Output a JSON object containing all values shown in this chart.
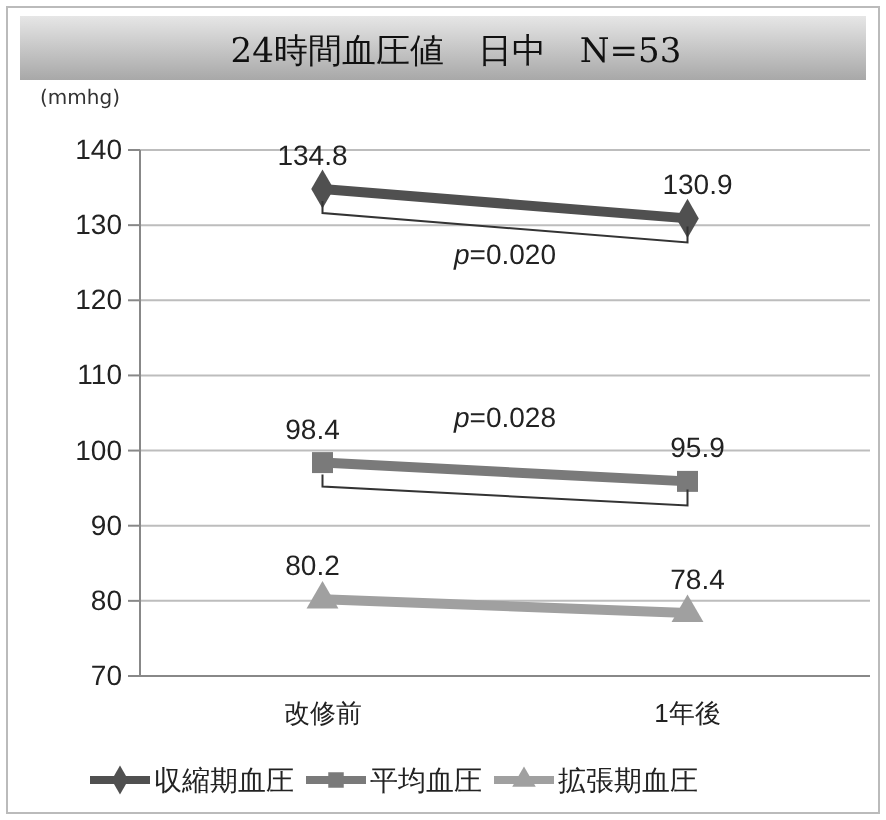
{
  "chart_data": {
    "type": "line",
    "title": "24時間血圧値　日中　N=53",
    "ylabel": "(mmhg)",
    "categories": [
      "改修前",
      "1年後"
    ],
    "series": [
      {
        "name": "収縮期血圧",
        "color": "#505050",
        "marker": "diamond",
        "values": [
          134.8,
          130.9
        ]
      },
      {
        "name": "平均血圧",
        "color": "#7a7a7a",
        "marker": "square",
        "values": [
          98.4,
          95.9
        ]
      },
      {
        "name": "拡張期血圧",
        "color": "#a0a0a0",
        "marker": "triangle",
        "values": [
          80.2,
          78.4
        ]
      }
    ],
    "ylim": [
      70,
      140
    ],
    "yticks": [
      70,
      80,
      90,
      100,
      110,
      120,
      130,
      140
    ],
    "grid": "y",
    "legend": "bottom",
    "data_labels": true,
    "line_style": "solid",
    "annotations": [
      "p=0.020",
      "p=0.028"
    ]
  }
}
